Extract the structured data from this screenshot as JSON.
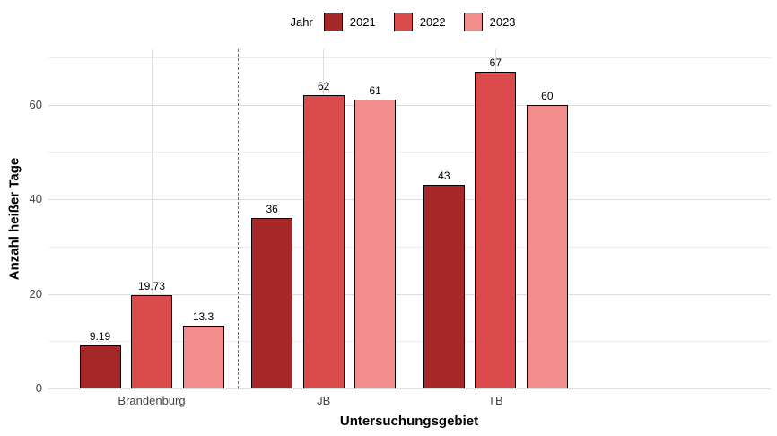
{
  "legend": {
    "title": "Jahr",
    "position": "top-center",
    "items": [
      {
        "label": "2021",
        "color": "#A62828"
      },
      {
        "label": "2022",
        "color": "#DC4B4B"
      },
      {
        "label": "2023",
        "color": "#F28D8D"
      }
    ]
  },
  "axes": {
    "x_title": "Untersuchungsgebiet",
    "y_title": "Anzahl heißer Tage"
  },
  "chart_data": {
    "type": "bar",
    "title": "",
    "xlabel": "Untersuchungsgebiet",
    "ylabel": "Anzahl heißer Tage",
    "categories": [
      "Brandenburg",
      "JB",
      "TB"
    ],
    "series": [
      {
        "name": "2021",
        "color": "#A62828",
        "values": [
          9.19,
          36,
          43
        ],
        "labels": [
          "9.19",
          "36",
          "43"
        ]
      },
      {
        "name": "2022",
        "color": "#DC4B4B",
        "values": [
          19.73,
          62,
          67
        ],
        "labels": [
          "19.73",
          "62",
          "67"
        ]
      },
      {
        "name": "2023",
        "color": "#F28D8D",
        "values": [
          13.3,
          61,
          60
        ],
        "labels": [
          "13.3",
          "61",
          "60"
        ]
      }
    ],
    "ylim": [
      0,
      71.7
    ],
    "y_major_ticks": [
      0,
      20,
      40,
      60
    ],
    "y_minor_ticks": [
      10,
      30,
      50,
      70
    ],
    "grid": true,
    "legend_position": "top",
    "legend_title": "Jahr",
    "bar_outline_color": "#000000",
    "separator_line": {
      "style": "dashed",
      "between_categories": [
        "Brandenburg",
        "JB"
      ],
      "color": "#6E6E6E"
    }
  }
}
